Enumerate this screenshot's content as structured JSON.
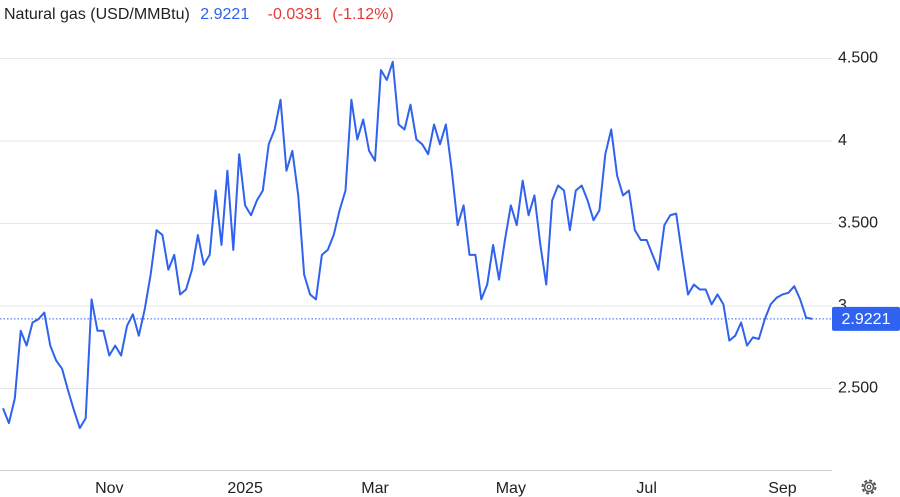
{
  "chart_data": {
    "type": "line",
    "title": "Natural gas (USD/MMBtu)",
    "price": 2.9221,
    "change": -0.0331,
    "change_percent": "(-1.12%)",
    "color": "#2f62ee",
    "grid": true,
    "ylim": [
      2,
      4.7
    ],
    "yticks": [
      {
        "value": 2.5,
        "label": "2.500"
      },
      3,
      {
        "value": 3.5,
        "label": "3.500"
      },
      4,
      {
        "value": 4.5,
        "label": "4.500"
      }
    ],
    "categories": [
      null,
      null,
      null,
      null,
      null,
      null,
      null,
      null,
      null,
      null,
      null,
      null,
      null,
      null,
      null,
      null,
      null,
      null,
      "Nov",
      null,
      null,
      null,
      null,
      null,
      null,
      null,
      null,
      null,
      null,
      null,
      null,
      null,
      null,
      null,
      null,
      null,
      null,
      null,
      null,
      null,
      null,
      "2025",
      null,
      null,
      null,
      null,
      null,
      null,
      null,
      null,
      null,
      null,
      null,
      null,
      null,
      null,
      null,
      null,
      null,
      null,
      null,
      null,
      null,
      "Mar",
      null,
      null,
      null,
      null,
      null,
      null,
      null,
      null,
      null,
      null,
      null,
      null,
      null,
      null,
      null,
      null,
      null,
      null,
      null,
      null,
      null,
      null,
      "May",
      null,
      null,
      null,
      null,
      null,
      null,
      null,
      null,
      null,
      null,
      null,
      null,
      null,
      null,
      null,
      null,
      null,
      null,
      null,
      null,
      null,
      null,
      "Jul",
      null,
      null,
      null,
      null,
      null,
      null,
      null,
      null,
      null,
      null,
      null,
      null,
      null,
      null,
      null,
      null,
      null,
      null,
      null,
      null,
      null,
      null,
      "Sep",
      null,
      null,
      null,
      null,
      null
    ],
    "values": [
      2.38,
      2.29,
      2.44,
      2.85,
      2.76,
      2.9,
      2.92,
      2.96,
      2.76,
      2.67,
      2.62,
      2.49,
      2.37,
      2.26,
      2.32,
      3.04,
      2.85,
      2.85,
      2.7,
      2.76,
      2.7,
      2.88,
      2.95,
      2.82,
      2.98,
      3.19,
      3.46,
      3.43,
      3.22,
      3.31,
      3.07,
      3.1,
      3.22,
      3.43,
      3.25,
      3.31,
      3.7,
      3.37,
      3.82,
      3.34,
      3.92,
      3.61,
      3.55,
      3.64,
      3.7,
      3.98,
      4.07,
      4.25,
      3.82,
      3.94,
      3.67,
      3.19,
      3.07,
      3.04,
      3.31,
      3.34,
      3.43,
      3.58,
      3.7,
      4.25,
      4.01,
      4.13,
      3.94,
      3.88,
      4.43,
      4.37,
      4.48,
      4.1,
      4.07,
      4.22,
      4.01,
      3.98,
      3.92,
      4.1,
      3.98,
      4.1,
      3.82,
      3.49,
      3.61,
      3.31,
      3.31,
      3.04,
      3.13,
      3.37,
      3.16,
      3.4,
      3.61,
      3.49,
      3.76,
      3.55,
      3.67,
      3.37,
      3.13,
      3.64,
      3.73,
      3.7,
      3.46,
      3.7,
      3.73,
      3.64,
      3.52,
      3.58,
      3.92,
      4.07,
      3.79,
      3.67,
      3.7,
      3.46,
      3.4,
      3.4,
      3.31,
      3.22,
      3.49,
      3.55,
      3.56,
      3.31,
      3.07,
      3.13,
      3.1,
      3.1,
      3.01,
      3.07,
      3.01,
      2.79,
      2.82,
      2.9,
      2.76,
      2.81,
      2.8,
      2.92,
      3.01,
      3.05,
      3.07,
      3.08,
      3.12,
      3.04,
      2.93,
      2.9221
    ]
  }
}
